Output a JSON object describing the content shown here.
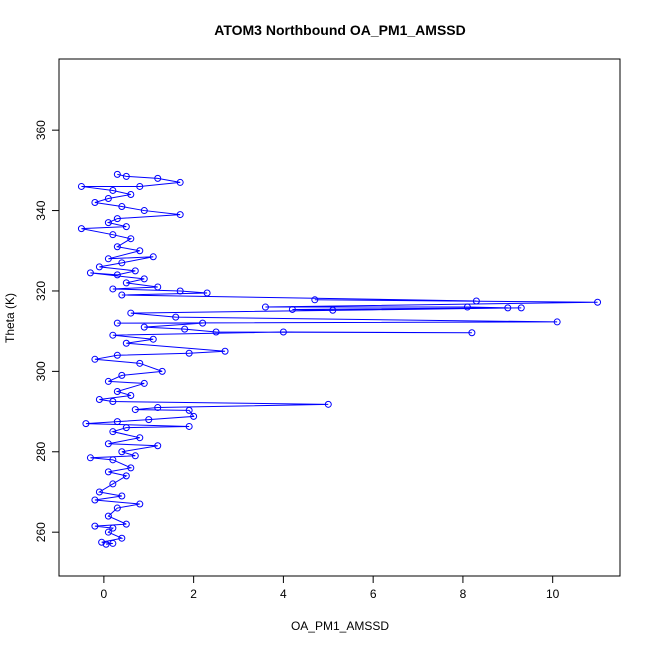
{
  "chart_data": {
    "type": "line",
    "title": "ATOM3 Northbound OA_PM1_AMSSD",
    "x_label": "OA_PM1_AMSSD",
    "y_label": "Theta (K)",
    "xlim": [
      -1.0,
      11.5
    ],
    "ylim": [
      249.1,
      377.7
    ],
    "xticks": [
      0,
      2,
      4,
      6,
      8,
      10
    ],
    "yticks": [
      260,
      280,
      300,
      320,
      340,
      360
    ],
    "series": [
      {
        "color": "#0000ff",
        "x": [
          0.3,
          0.5,
          1.2,
          1.7,
          0.8,
          -0.5,
          0.2,
          0.6,
          0.1,
          -0.2,
          0.4,
          0.9,
          1.7,
          0.3,
          0.1,
          0.5,
          -0.5,
          0.2,
          0.6,
          0.3,
          0.8,
          0.1,
          1.1,
          0.4,
          -0.1,
          0.7,
          0.3,
          -0.3,
          0.9,
          0.5,
          1.2,
          0.2,
          1.7,
          2.3,
          0.4,
          8.3,
          4.7,
          11.0,
          3.6,
          8.1,
          9.0,
          4.2,
          5.1,
          9.3,
          0.6,
          1.6,
          10.1,
          0.3,
          2.2,
          0.9,
          1.8,
          2.5,
          8.2,
          4.0,
          0.2,
          1.1,
          0.5,
          2.7,
          1.9,
          0.3,
          -0.2,
          0.8,
          1.3,
          0.4,
          0.1,
          0.9,
          0.3,
          0.6,
          -0.1,
          0.2,
          5.0,
          1.2,
          0.7,
          1.9,
          2.0,
          1.0,
          0.3,
          -0.4,
          1.9,
          0.5,
          0.2,
          0.8,
          0.1,
          1.2,
          0.4,
          0.7,
          -0.3,
          0.2,
          0.6,
          0.1,
          0.5,
          0.2,
          -0.1,
          0.4,
          -0.2,
          0.8,
          0.3,
          0.1,
          0.5,
          -0.2,
          0.2,
          0.1,
          0.4,
          -0.05,
          0.2,
          0.05
        ],
        "values": [
          349,
          348.5,
          348,
          347,
          346,
          346,
          345,
          344,
          343,
          342,
          341,
          340,
          339,
          338,
          337,
          336,
          335.5,
          334,
          333,
          331,
          330,
          328,
          328.5,
          327,
          326,
          325,
          324,
          324.5,
          323,
          322,
          321,
          320.5,
          320,
          319.5,
          319,
          317.5,
          317.8,
          317.2,
          316,
          316,
          315.8,
          315.4,
          315.2,
          315.8,
          314.5,
          313.5,
          312.3,
          312,
          312,
          311,
          310.5,
          309.8,
          309.6,
          309.8,
          309,
          308,
          307,
          305,
          304.5,
          304,
          303,
          302,
          300,
          299,
          297.5,
          297,
          295,
          294,
          293,
          292.5,
          291.8,
          291,
          290.5,
          290.3,
          288.8,
          288,
          287.5,
          287,
          286.3,
          286,
          285,
          283.5,
          282,
          281.5,
          280,
          279,
          278.5,
          278,
          276,
          275,
          274,
          272,
          270,
          269,
          268,
          267,
          266,
          264,
          262,
          261.5,
          261,
          260,
          258.5,
          257.5,
          257.2,
          257
        ]
      }
    ]
  }
}
